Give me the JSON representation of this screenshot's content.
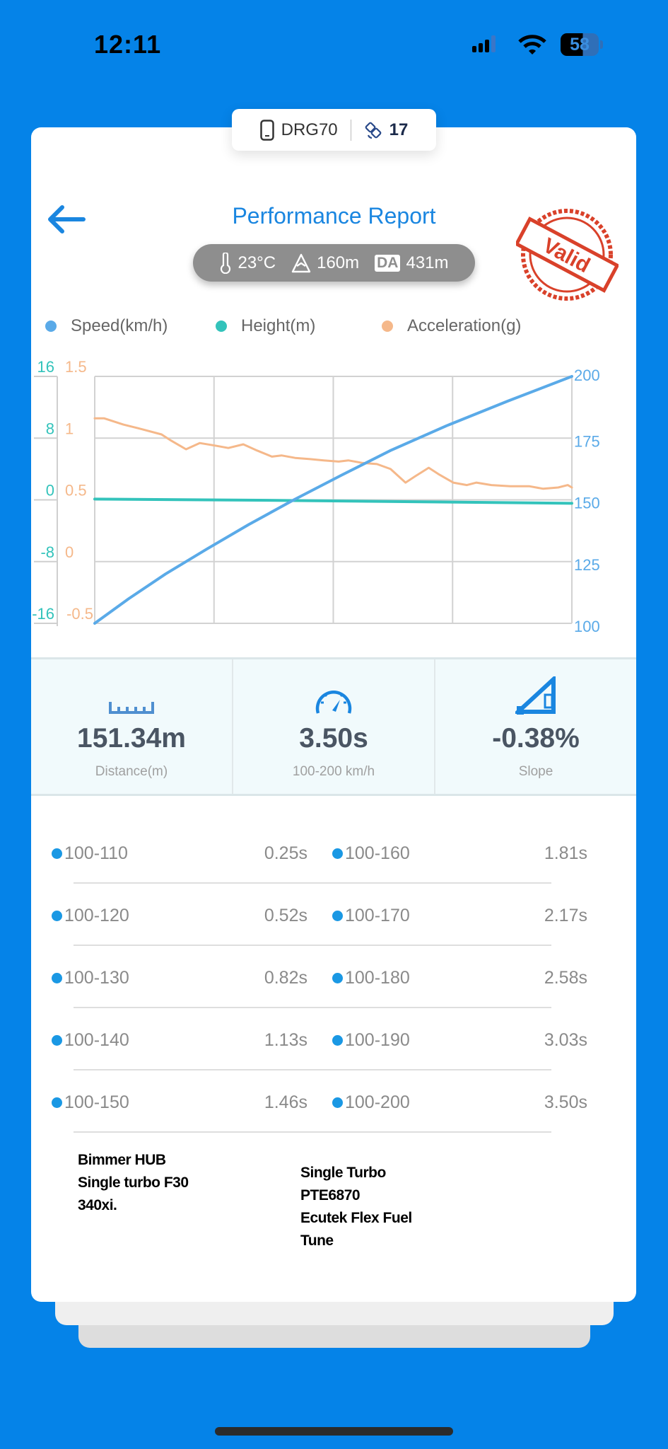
{
  "status_bar": {
    "time": "12:11",
    "battery": "58"
  },
  "device": {
    "name": "DRG70",
    "satellites": "17"
  },
  "header": {
    "title": "Performance Report",
    "stamp_text": "Valid"
  },
  "conditions": {
    "temperature": "23°C",
    "altitude": "160m",
    "da_label": "DA",
    "density_altitude": "431m"
  },
  "colors": {
    "speed": "#5aaae8",
    "height": "#33c3bb",
    "acceleration": "#f5b88a",
    "accent": "#1a86e0",
    "background": "#0583e8"
  },
  "chart_data": {
    "type": "line",
    "x": [],
    "legend_placement": "top",
    "grid": true,
    "series": [
      {
        "name": "Speed(km/h)",
        "axis": "right",
        "ylim": [
          100,
          200
        ],
        "points": [
          [
            0,
            100
          ],
          [
            0.25,
            110
          ],
          [
            0.52,
            120
          ],
          [
            0.82,
            130
          ],
          [
            1.13,
            140
          ],
          [
            1.46,
            150
          ],
          [
            1.81,
            160
          ],
          [
            2.17,
            170
          ],
          [
            2.58,
            180
          ],
          [
            3.03,
            190
          ],
          [
            3.5,
            200
          ]
        ]
      },
      {
        "name": "Height(m)",
        "axis": "left-outer",
        "ylim": [
          -16,
          16
        ],
        "points": [
          [
            0,
            0.1
          ],
          [
            1.2,
            -0.05
          ],
          [
            2.4,
            -0.25
          ],
          [
            3.5,
            -0.45
          ]
        ]
      },
      {
        "name": "Acceleration(g)",
        "axis": "left-inner",
        "ylim": [
          -0.5,
          1.5
        ],
        "points": [
          [
            0,
            1.16
          ],
          [
            0.07,
            1.16
          ],
          [
            0.21,
            1.11
          ],
          [
            0.32,
            1.08
          ],
          [
            0.49,
            1.03
          ],
          [
            0.56,
            0.98
          ],
          [
            0.67,
            0.91
          ],
          [
            0.77,
            0.96
          ],
          [
            0.88,
            0.94
          ],
          [
            0.98,
            0.92
          ],
          [
            1.09,
            0.95
          ],
          [
            1.19,
            0.9
          ],
          [
            1.3,
            0.85
          ],
          [
            1.37,
            0.86
          ],
          [
            1.47,
            0.84
          ],
          [
            1.58,
            0.83
          ],
          [
            1.68,
            0.82
          ],
          [
            1.79,
            0.81
          ],
          [
            1.86,
            0.82
          ],
          [
            1.96,
            0.8
          ],
          [
            2.07,
            0.79
          ],
          [
            2.17,
            0.75
          ],
          [
            2.28,
            0.64
          ],
          [
            2.35,
            0.69
          ],
          [
            2.45,
            0.76
          ],
          [
            2.52,
            0.71
          ],
          [
            2.63,
            0.64
          ],
          [
            2.73,
            0.62
          ],
          [
            2.8,
            0.64
          ],
          [
            2.91,
            0.62
          ],
          [
            3.05,
            0.61
          ],
          [
            3.19,
            0.61
          ],
          [
            3.29,
            0.59
          ],
          [
            3.4,
            0.6
          ],
          [
            3.47,
            0.62
          ],
          [
            3.5,
            0.6
          ]
        ]
      }
    ],
    "xlim": [
      0,
      3.5
    ],
    "height_ticks": [
      "16",
      "8",
      "0",
      "-8",
      "-16"
    ],
    "acceleration_ticks": [
      "1.5",
      "1",
      "0.5",
      "0",
      "-0.5"
    ],
    "speed_ticks": [
      "200",
      "175",
      "150",
      "125",
      "100"
    ]
  },
  "stats": [
    {
      "icon": "ruler-icon",
      "value": "151.34m",
      "label": "Distance(m)"
    },
    {
      "icon": "speedometer-icon",
      "value": "3.50s",
      "label": "100-200 km/h"
    },
    {
      "icon": "slope-icon",
      "value": "-0.38%",
      "label": "Slope"
    }
  ],
  "splits": [
    {
      "label": "100-110",
      "time": "0.25s"
    },
    {
      "label": "100-120",
      "time": "0.52s"
    },
    {
      "label": "100-130",
      "time": "0.82s"
    },
    {
      "label": "100-140",
      "time": "1.13s"
    },
    {
      "label": "100-150",
      "time": "1.46s"
    },
    {
      "label": "100-160",
      "time": "1.81s"
    },
    {
      "label": "100-170",
      "time": "2.17s"
    },
    {
      "label": "100-180",
      "time": "2.58s"
    },
    {
      "label": "100-190",
      "time": "3.03s"
    },
    {
      "label": "100-200",
      "time": "3.50s"
    }
  ],
  "notes": {
    "left": "Bimmer HUB\nSingle turbo F30\n340xi.",
    "right": "Single Turbo\nPTE6870\nEcutek Flex Fuel\nTune"
  }
}
